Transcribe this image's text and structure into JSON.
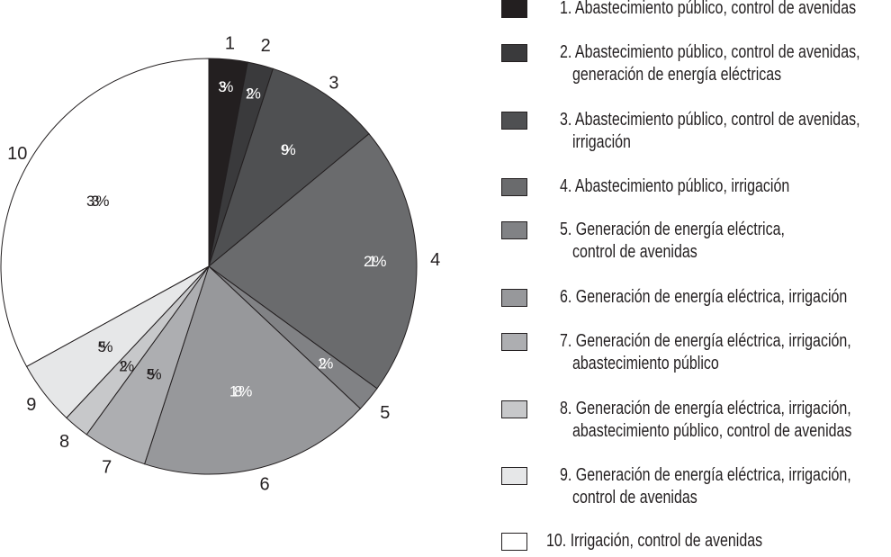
{
  "chart_data": {
    "type": "pie",
    "start": "top",
    "direction": "clockwise",
    "slices": [
      {
        "label": "1",
        "value": 3,
        "pct_label": "3%",
        "color": "#231f20",
        "legend": [
          "1. Abastecimiento público, control de avenidas"
        ]
      },
      {
        "label": "2",
        "value": 2,
        "pct_label": "2%",
        "color": "#3a3a3c",
        "legend": [
          "2. Abastecimiento público, control de avenidas,",
          "generación de energía eléctricas"
        ]
      },
      {
        "label": "3",
        "value": 9,
        "pct_label": "9%",
        "color": "#4f5052",
        "legend": [
          "3. Abastecimiento público, control de avenidas,",
          "irrigación"
        ]
      },
      {
        "label": "4",
        "value": 21,
        "pct_label": "21%",
        "color": "#6a6b6d",
        "legend": [
          "4. Abastecimiento público, irrigación"
        ]
      },
      {
        "label": "5",
        "value": 2,
        "pct_label": "2%",
        "color": "#818285",
        "legend": [
          "5. Generación de energía eléctrica,",
          "control de avenidas"
        ]
      },
      {
        "label": "6",
        "value": 18,
        "pct_label": "18%",
        "color": "#97989b",
        "legend": [
          "6. Generación de energía eléctrica, irrigación"
        ]
      },
      {
        "label": "7",
        "value": 5,
        "pct_label": "5%",
        "color": "#adaeb1",
        "legend": [
          "7. Generación de energía eléctrica, irrigación,",
          "abastecimiento público"
        ]
      },
      {
        "label": "8",
        "value": 2,
        "pct_label": "2%",
        "color": "#c7c8ca",
        "legend": [
          "8. Generación de energía eléctrica, irrigación,",
          "abastecimiento público, control de avenidas"
        ]
      },
      {
        "label": "9",
        "value": 5,
        "pct_label": "5%",
        "color": "#e6e7e8",
        "legend": [
          "9. Generación de energía eléctrica, irrigación,",
          "control de avenidas"
        ]
      },
      {
        "label": "10",
        "value": 33,
        "pct_label": "33%",
        "color": "#ffffff",
        "legend": [
          "10. Irrigación, control de avenidas"
        ]
      }
    ],
    "legend_placement": "right"
  }
}
